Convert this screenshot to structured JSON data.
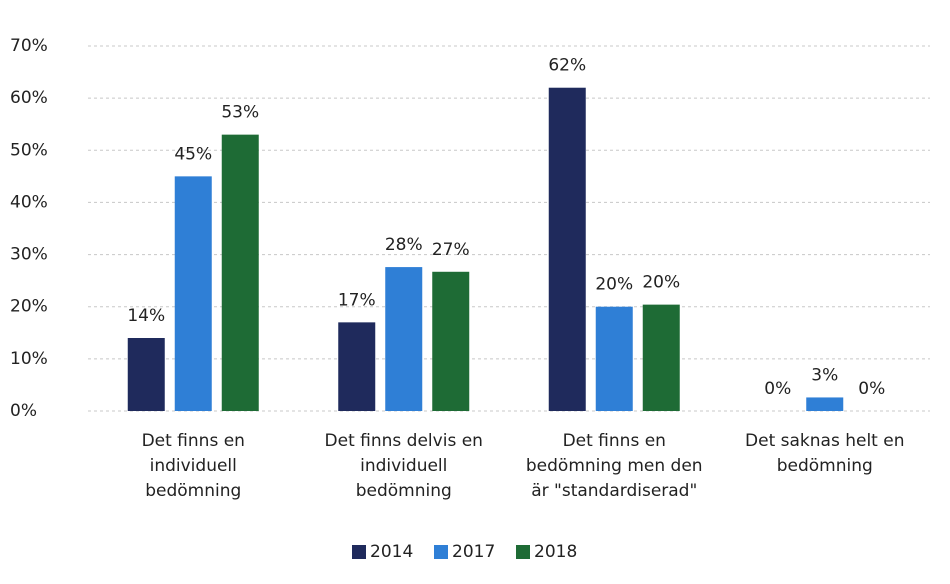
{
  "chart_data": {
    "type": "bar",
    "categories": [
      [
        "Det finns en",
        "individuell",
        "bedömning"
      ],
      [
        "Det finns delvis en",
        "individuell",
        "bedömning"
      ],
      [
        "Det finns en",
        "bedömning men den",
        "är \"standardiserad\""
      ],
      [
        "Det saknas helt en",
        "bedömning"
      ]
    ],
    "series": [
      {
        "name": "2014",
        "color": "#1f2a5c",
        "values": [
          14,
          17,
          62,
          0
        ],
        "value_labels": [
          "14%",
          "17%",
          "62%",
          "0%"
        ]
      },
      {
        "name": "2017",
        "color": "#2f7fd6",
        "values": [
          45,
          27.6,
          20,
          2.6
        ],
        "value_labels": [
          "45%",
          "28%",
          "20%",
          "3%"
        ]
      },
      {
        "name": "2018",
        "color": "#1e6b35",
        "values": [
          53,
          26.7,
          20.4,
          0
        ],
        "value_labels": [
          "53%",
          "27%",
          "20%",
          "0%"
        ]
      }
    ],
    "ylim": [
      0,
      70
    ],
    "yticks": [
      {
        "value": 0,
        "label": "0%"
      },
      {
        "value": 10,
        "label": "10%"
      },
      {
        "value": 20,
        "label": "20%"
      },
      {
        "value": 30,
        "label": "30%"
      },
      {
        "value": 40,
        "label": "40%"
      },
      {
        "value": 50,
        "label": "50%"
      },
      {
        "value": 60,
        "label": "60%"
      },
      {
        "value": 70,
        "label": "70%"
      }
    ],
    "grid": true,
    "legend": "bottom"
  }
}
